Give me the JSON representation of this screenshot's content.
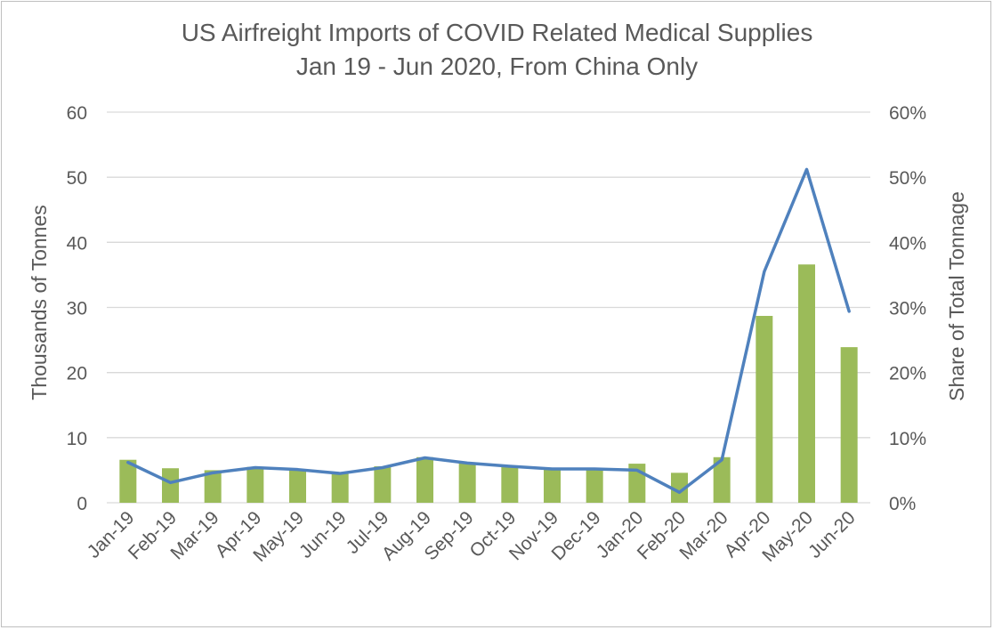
{
  "chart_data": {
    "type": "bar+line",
    "title": "US Airfreight Imports of COVID Related Medical Supplies",
    "subtitle": "Jan 19 - Jun 2020, From China Only",
    "categories": [
      "Jan-19",
      "Feb-19",
      "Mar-19",
      "Apr-19",
      "May-19",
      "Jun-19",
      "Jul-19",
      "Aug-19",
      "Sep-19",
      "Oct-19",
      "Nov-19",
      "Dec-19",
      "Jan-20",
      "Feb-20",
      "Mar-20",
      "Apr-20",
      "May-20",
      "Jun-20"
    ],
    "series": [
      {
        "type": "bar",
        "axis": "left",
        "color": "#9bbb59",
        "values": [
          6.6,
          5.3,
          5.0,
          5.5,
          5.0,
          4.6,
          5.6,
          7.0,
          6.2,
          5.6,
          5.1,
          5.1,
          6.0,
          4.6,
          7.0,
          28.7,
          36.6,
          23.9
        ]
      },
      {
        "type": "line",
        "axis": "right",
        "color": "#4f81bd",
        "values": [
          0.062,
          0.031,
          0.046,
          0.054,
          0.051,
          0.045,
          0.054,
          0.069,
          0.061,
          0.056,
          0.052,
          0.052,
          0.05,
          0.016,
          0.066,
          0.355,
          0.512,
          0.294
        ]
      }
    ],
    "ylabel": "Thousands of Tonnes",
    "ylim": [
      0,
      60
    ],
    "yticks": [
      "0",
      "10",
      "20",
      "30",
      "40",
      "50",
      "60"
    ],
    "y2label": "Share of Total Tonnage",
    "y2lim": [
      0,
      0.6
    ],
    "y2ticks": [
      "0%",
      "10%",
      "20%",
      "30%",
      "40%",
      "50%",
      "60%"
    ],
    "grid": true,
    "gridline_color": "#d9d9d9",
    "text_color": "#595959"
  }
}
